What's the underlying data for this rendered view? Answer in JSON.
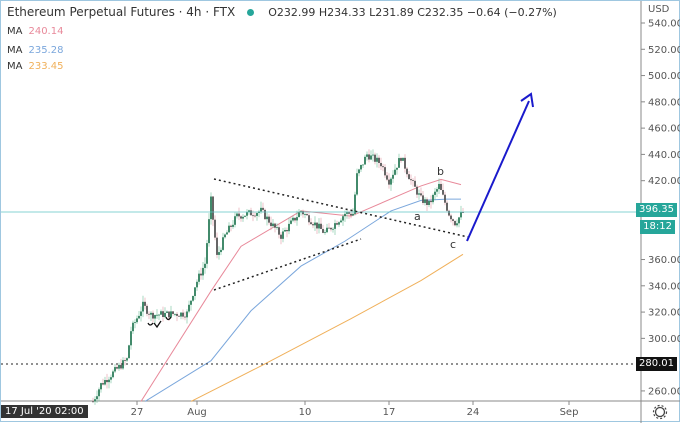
{
  "header": {
    "title": "Ethereum Perpetual Futures · 4h · FTX",
    "ohlc": "O232.99 H234.33 L231.89 C232.35 −0.64 (−0.27%)",
    "status_color": "#26a69a"
  },
  "mas": [
    {
      "label": "MA",
      "value": "240.14",
      "color": "#e8899a"
    },
    {
      "label": "MA",
      "value": "235.28",
      "color": "#7ba7dc"
    },
    {
      "label": "MA",
      "value": "233.45",
      "color": "#f0b05a"
    }
  ],
  "price_axis": {
    "currency": "USD",
    "ticks": [
      "540.00",
      "520.00",
      "500.00",
      "480.00",
      "460.00",
      "440.00",
      "420.00",
      "360.00",
      "340.00",
      "320.00",
      "300.00",
      "260.00"
    ],
    "last_price": "396.35",
    "countdown": "18:12",
    "level_label": "280.01"
  },
  "time_axis": {
    "cursor_label": "17 Jul '20  02:00",
    "ticks": [
      "27",
      "Aug",
      "10",
      "17",
      "24",
      "Sep"
    ]
  },
  "annotations": {
    "a": "a",
    "b": "b",
    "c": "c"
  },
  "chart_data": {
    "type": "candlestick",
    "interval": "4h",
    "ylim": [
      250,
      550
    ],
    "close_path": [
      [
        "Jul 23 08:00",
        252
      ],
      [
        "Jul 24 00:00",
        265
      ],
      [
        "Jul 26 04:00",
        284
      ],
      [
        "Jul 26 12:00",
        306
      ],
      [
        "Jul 27 12:00",
        325
      ],
      [
        "Jul 28 04:00",
        318
      ],
      [
        "Jul 31 04:00",
        319
      ],
      [
        "Jul 31 20:00",
        340
      ],
      [
        "Aug 1 16:00",
        357
      ],
      [
        "Aug 2 04:00",
        405
      ],
      [
        "Aug 2 16:00",
        362
      ],
      [
        "Aug 3 08:00",
        378
      ],
      [
        "Aug 4 08:00",
        393
      ],
      [
        "Aug 6 08:00",
        397
      ],
      [
        "Aug 8 00:00",
        378
      ],
      [
        "Aug 9 16:00",
        397
      ],
      [
        "Aug 11 16:00",
        380
      ],
      [
        "Aug 13 08:00",
        395
      ],
      [
        "Aug 14 00:00",
        395
      ],
      [
        "Aug 14 08:00",
        424
      ],
      [
        "Aug 15 04:00",
        440
      ],
      [
        "Aug 16 08:00",
        433
      ],
      [
        "Aug 17 00:00",
        420
      ],
      [
        "Aug 18 00:00",
        438
      ],
      [
        "Aug 18 20:00",
        420
      ],
      [
        "Aug 19 16:00",
        406
      ],
      [
        "Aug 20 08:00",
        402
      ],
      [
        "Aug 21 04:00",
        416
      ],
      [
        "Aug 22 00:00",
        395
      ],
      [
        "Aug 22 12:00",
        388
      ],
      [
        "Aug 23 04:00",
        396
      ]
    ],
    "ma_series": [
      {
        "color": "#e8899a",
        "points": [
          [
            "Jul 27 08:00",
            252
          ],
          [
            "Aug 2 04:00",
            336
          ],
          [
            "Aug 4 16:00",
            370
          ],
          [
            "Aug 9 16:00",
            397
          ],
          [
            "Aug 13 20:00",
            393
          ],
          [
            "Aug 19 16:00",
            416
          ],
          [
            "Aug 21 08:00",
            421
          ],
          [
            "Aug 23 00:00",
            417
          ]
        ]
      },
      {
        "color": "#7ba7dc",
        "points": [
          [
            "Jul 27 16:00",
            252
          ],
          [
            "Aug 2 04:00",
            283
          ],
          [
            "Aug 5 12:00",
            321
          ],
          [
            "Aug 9 16:00",
            355
          ],
          [
            "Aug 13 08:00",
            374
          ],
          [
            "Aug 17 04:00",
            397
          ],
          [
            "Aug 19 16:00",
            405
          ],
          [
            "Aug 21 20:00",
            406
          ],
          [
            "Aug 23 00:00",
            406
          ]
        ]
      },
      {
        "color": "#f0b05a",
        "points": [
          [
            "Jul 31 12:00",
            252
          ],
          [
            "Aug 6 08:00",
            279
          ],
          [
            "Aug 13 20:00",
            315
          ],
          [
            "Aug 19 16:00",
            344
          ],
          [
            "Aug 23 04:00",
            364
          ]
        ]
      }
    ],
    "horizontal_levels": [
      396.35,
      280.01
    ],
    "up_color": "#2e7d5b",
    "down_color": "#555555"
  }
}
